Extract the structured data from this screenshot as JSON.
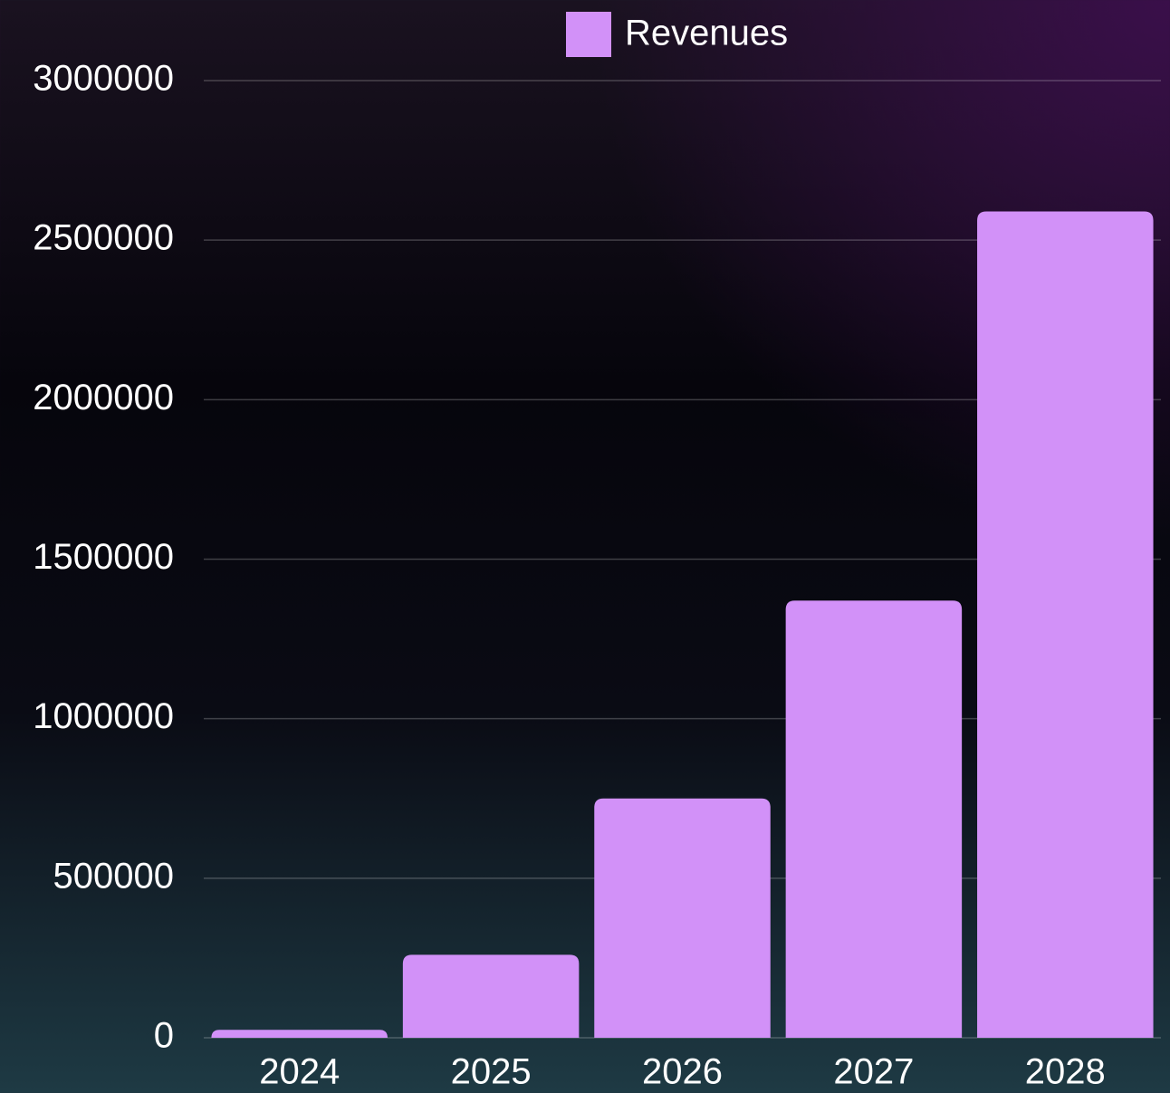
{
  "chart_data": {
    "type": "bar",
    "legend": "Revenues",
    "categories": [
      "2024",
      "2025",
      "2026",
      "2027",
      "2028"
    ],
    "values": [
      25000,
      260000,
      750000,
      1370000,
      2590000
    ],
    "color": "#d291f8",
    "ylim": [
      0,
      3000000
    ],
    "yticks": [
      0,
      500000,
      1000000,
      1500000,
      2000000,
      2500000,
      3000000
    ],
    "grid": true
  }
}
